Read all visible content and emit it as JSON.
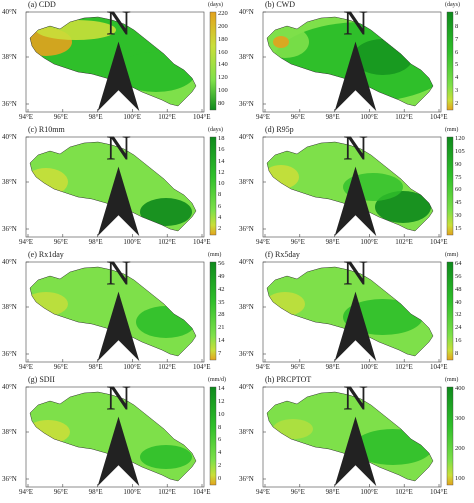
{
  "figure": {
    "lat_labels": [
      "40°N",
      "38°N",
      "36°N"
    ],
    "lon_labels": [
      "94°E",
      "96°E",
      "98°E",
      "100°E",
      "102°E",
      "104°E"
    ],
    "north_arrow_label": "N"
  },
  "panels": [
    {
      "id": "a",
      "title": "(a) CDD",
      "unit": "(days)",
      "colormap": "reversed",
      "ticks": [
        "220",
        "200",
        "180",
        "160",
        "140",
        "120",
        "100",
        "80"
      ]
    },
    {
      "id": "b",
      "title": "(b) CWD",
      "unit": "(days)",
      "colormap": "normal",
      "ticks": [
        "9",
        "8",
        "7",
        "6",
        "5",
        "4",
        "3",
        "2"
      ]
    },
    {
      "id": "c",
      "title": "(c) R10mm",
      "unit": "(days)",
      "colormap": "normal",
      "ticks": [
        "18",
        "16",
        "14",
        "12",
        "10",
        "8",
        "6",
        "4",
        "2"
      ]
    },
    {
      "id": "d",
      "title": "(d) R95p",
      "unit": "(mm)",
      "colormap": "normal",
      "ticks": [
        "120",
        "105",
        "90",
        "75",
        "60",
        "45",
        "30",
        "15"
      ]
    },
    {
      "id": "e",
      "title": "(e) Rx1day",
      "unit": "(mm)",
      "colormap": "normal",
      "ticks": [
        "56",
        "49",
        "42",
        "35",
        "28",
        "21",
        "14",
        "7"
      ]
    },
    {
      "id": "f",
      "title": "(f) Rx5day",
      "unit": "(mm)",
      "colormap": "normal",
      "ticks": [
        "64",
        "56",
        "48",
        "40",
        "32",
        "24",
        "16",
        "8"
      ]
    },
    {
      "id": "g",
      "title": "(g) SDII",
      "unit": "(mm/d)",
      "colormap": "normal",
      "ticks": [
        "14",
        "12",
        "10",
        "8",
        "6",
        "4",
        "2",
        "0"
      ]
    },
    {
      "id": "h",
      "title": "(h) PRCPTOT",
      "unit": "(mm)",
      "colormap": "normal",
      "ticks": [
        "400",
        "300",
        "200",
        "100"
      ]
    }
  ],
  "colors": {
    "dark_green": "#0e8a1c",
    "mid_green": "#2fbf2a",
    "light_green": "#7ee04a",
    "yellow_green": "#c9df3a",
    "orange": "#e3a21e",
    "frame": "#444444"
  }
}
